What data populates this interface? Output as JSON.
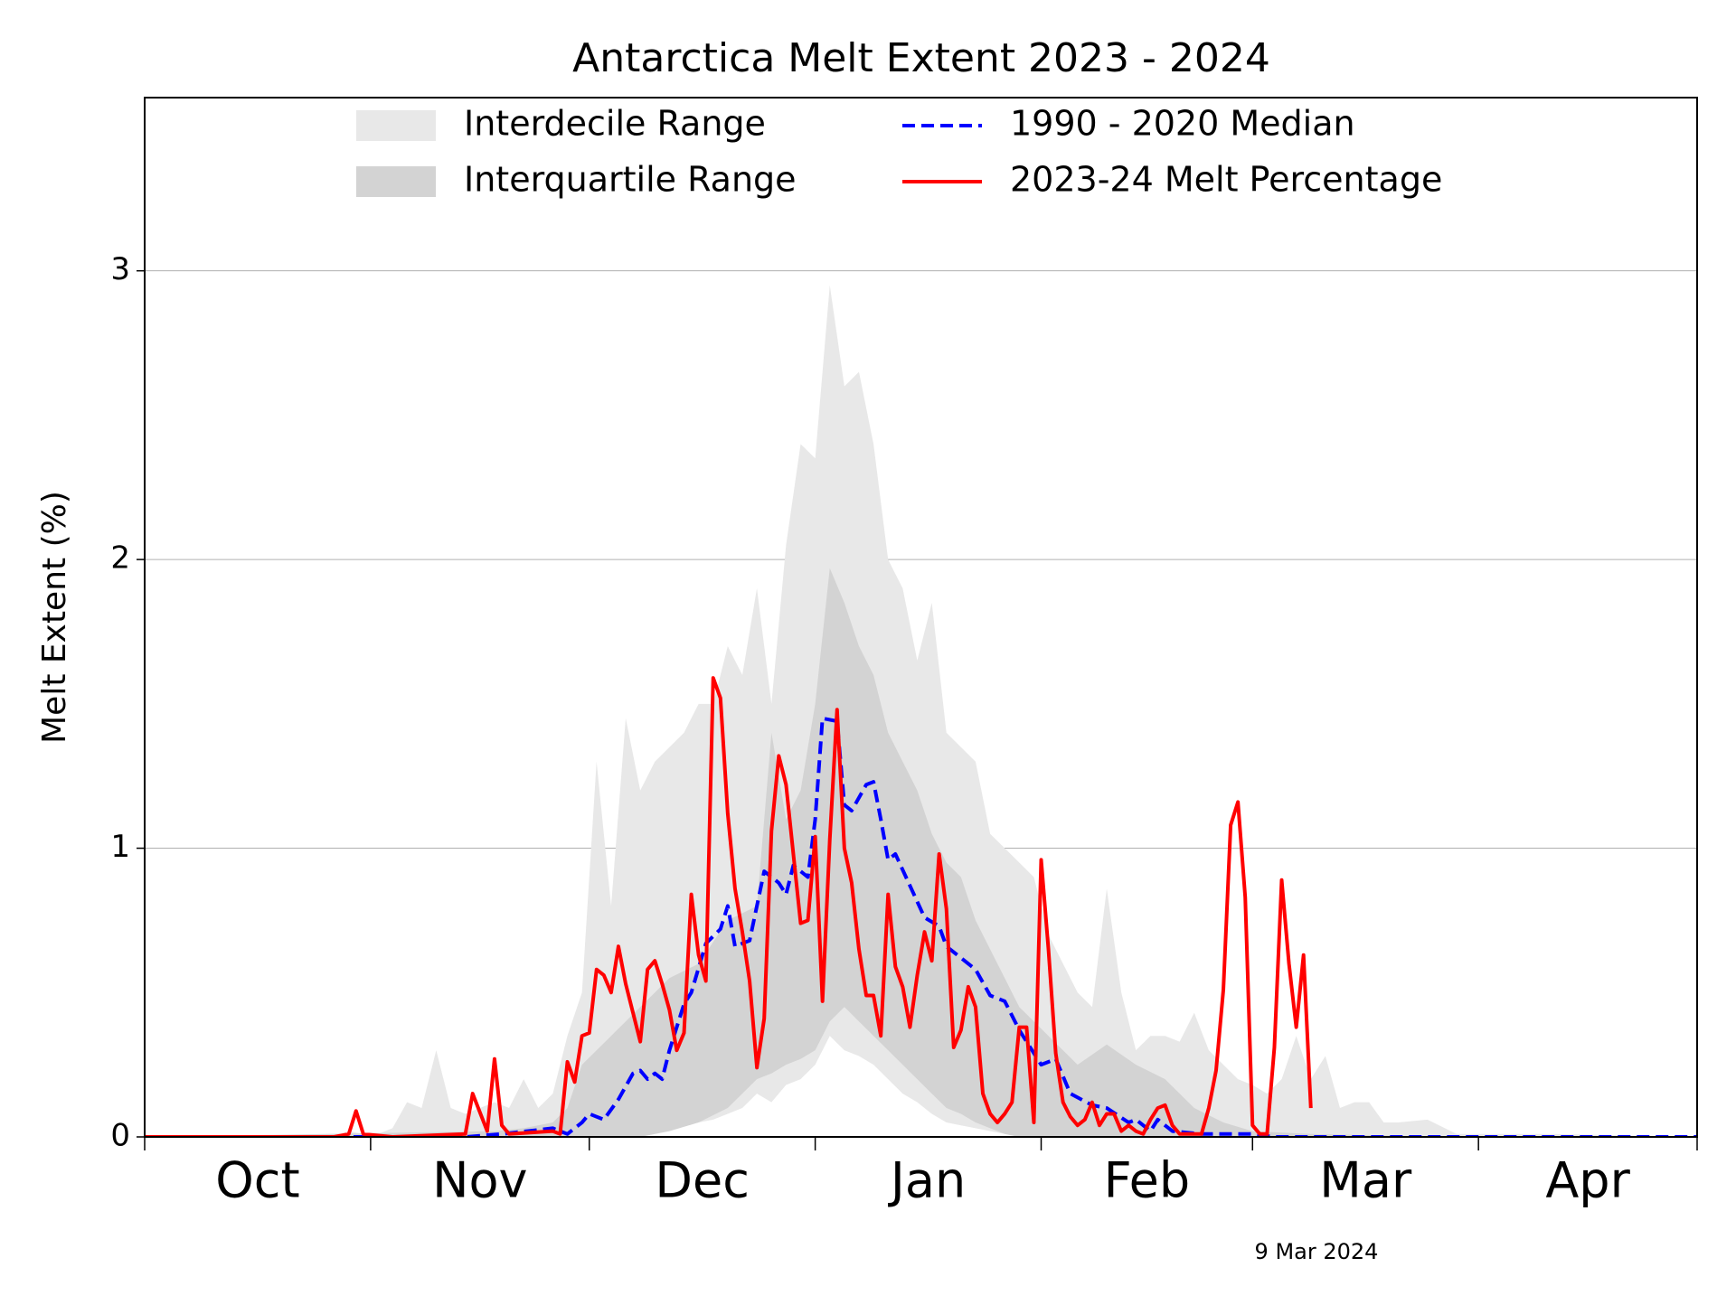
{
  "chart_data": {
    "type": "line",
    "title": "Antarctica Melt Extent 2023 - 2024",
    "ylabel": "Melt Extent (%)",
    "annotation": "9 Mar 2024",
    "xlim": [
      0,
      213
    ],
    "xticks": [
      0,
      31,
      61,
      92,
      123,
      152,
      183,
      213
    ],
    "month_labels": [
      {
        "value": 15.5,
        "label": "Oct"
      },
      {
        "value": 46,
        "label": "Nov"
      },
      {
        "value": 76.5,
        "label": "Dec"
      },
      {
        "value": 107.5,
        "label": "Jan"
      },
      {
        "value": 137.5,
        "label": "Feb"
      },
      {
        "value": 167.5,
        "label": "Mar"
      },
      {
        "value": 198,
        "label": "Apr"
      }
    ],
    "ylim": [
      0,
      3.6
    ],
    "yticks": [
      0,
      1,
      2,
      3
    ],
    "grid": true,
    "legend": "upper center",
    "series": [
      {
        "name": "Interdecile Range",
        "color": "#e8e8e8",
        "x": [
          0,
          26,
          28,
          30,
          32,
          34,
          36,
          38,
          40,
          42,
          44,
          46,
          48,
          50,
          52,
          54,
          56,
          58,
          60,
          62,
          64,
          66,
          68,
          70,
          72,
          74,
          76,
          78,
          80,
          82,
          84,
          86,
          88,
          90,
          92,
          94,
          96,
          98,
          100,
          102,
          104,
          106,
          108,
          110,
          112,
          114,
          116,
          118,
          120,
          122,
          124,
          126,
          128,
          130,
          132,
          134,
          136,
          138,
          140,
          142,
          144,
          146,
          148,
          150,
          152,
          154,
          156,
          158,
          160,
          162,
          164,
          166,
          168,
          170,
          172,
          176,
          180,
          193,
          213
        ],
        "high": [
          0,
          0,
          0.02,
          0.01,
          0.01,
          0.03,
          0.12,
          0.1,
          0.3,
          0.1,
          0.08,
          0.1,
          0.12,
          0.1,
          0.2,
          0.1,
          0.15,
          0.35,
          0.5,
          1.3,
          0.8,
          1.45,
          1.2,
          1.3,
          1.35,
          1.4,
          1.5,
          1.5,
          1.7,
          1.6,
          1.9,
          1.5,
          2.05,
          2.4,
          2.35,
          2.95,
          2.6,
          2.65,
          2.4,
          2.0,
          1.9,
          1.65,
          1.85,
          1.4,
          1.35,
          1.3,
          1.05,
          1.0,
          0.95,
          0.9,
          0.7,
          0.6,
          0.5,
          0.45,
          0.86,
          0.5,
          0.3,
          0.35,
          0.35,
          0.33,
          0.43,
          0.3,
          0.25,
          0.2,
          0.18,
          0.15,
          0.2,
          0.35,
          0.2,
          0.28,
          0.1,
          0.12,
          0.12,
          0.05,
          0.05,
          0.06,
          0.01,
          0.01,
          0
        ],
        "low": [
          0,
          0,
          0,
          0,
          0,
          0,
          0,
          0,
          0,
          0,
          0,
          0,
          0,
          0,
          0,
          0,
          0,
          0,
          0,
          0,
          0,
          0,
          0,
          0.02,
          0.03,
          0.04,
          0.05,
          0.06,
          0.08,
          0.1,
          0.15,
          0.12,
          0.18,
          0.2,
          0.25,
          0.35,
          0.3,
          0.28,
          0.25,
          0.2,
          0.15,
          0.12,
          0.08,
          0.05,
          0.04,
          0.03,
          0.02,
          0.01,
          0,
          0,
          0,
          0,
          0,
          0,
          0,
          0,
          0,
          0,
          0,
          0,
          0,
          0,
          0,
          0,
          0,
          0,
          0,
          0,
          0,
          0,
          0,
          0,
          0,
          0,
          0,
          0,
          0,
          0,
          0
        ]
      },
      {
        "name": "Interquartile Range",
        "color": "#d3d3d3",
        "x": [
          0,
          48,
          52,
          56,
          58,
          60,
          64,
          68,
          72,
          76,
          80,
          84,
          86,
          88,
          90,
          92,
          94,
          96,
          98,
          100,
          102,
          104,
          106,
          108,
          110,
          112,
          114,
          116,
          118,
          120,
          124,
          128,
          132,
          136,
          140,
          144,
          148,
          152,
          160,
          180,
          213
        ],
        "high": [
          0,
          0.02,
          0.03,
          0.05,
          0.1,
          0.25,
          0.35,
          0.45,
          0.55,
          0.6,
          0.75,
          0.8,
          1.4,
          1.1,
          1.2,
          1.5,
          1.97,
          1.85,
          1.7,
          1.6,
          1.4,
          1.3,
          1.2,
          1.05,
          0.95,
          0.9,
          0.75,
          0.65,
          0.55,
          0.45,
          0.35,
          0.25,
          0.32,
          0.25,
          0.2,
          0.1,
          0.05,
          0.02,
          0.01,
          0,
          0
        ],
        "low": [
          0,
          0,
          0,
          0,
          0,
          0,
          0,
          0,
          0.02,
          0.05,
          0.1,
          0.2,
          0.22,
          0.25,
          0.27,
          0.3,
          0.4,
          0.45,
          0.4,
          0.35,
          0.3,
          0.25,
          0.2,
          0.15,
          0.1,
          0.08,
          0.05,
          0.03,
          0.01,
          0,
          0,
          0,
          0,
          0,
          0,
          0,
          0,
          0,
          0,
          0,
          0
        ]
      },
      {
        "name": "1990 - 2020 Median",
        "color": "#0000ff",
        "linestyle": "dashed",
        "x": [
          0,
          44,
          49,
          56,
          58,
          60,
          61,
          63,
          65,
          67,
          68,
          69,
          70,
          71,
          72,
          74,
          75,
          77,
          79,
          80,
          81,
          83,
          85,
          87,
          88,
          89,
          91,
          92,
          93,
          95,
          96,
          97,
          99,
          100,
          101,
          102,
          103,
          105,
          107,
          109,
          110,
          112,
          114,
          116,
          118,
          120,
          123,
          125,
          127,
          130,
          132,
          135,
          136,
          138,
          139,
          141,
          145,
          152,
          155,
          213
        ],
        "values": [
          0,
          0,
          0.01,
          0.03,
          0.01,
          0.05,
          0.08,
          0.06,
          0.13,
          0.22,
          0.23,
          0.2,
          0.22,
          0.2,
          0.3,
          0.46,
          0.5,
          0.67,
          0.72,
          0.8,
          0.66,
          0.68,
          0.92,
          0.88,
          0.84,
          0.94,
          0.9,
          1.1,
          1.45,
          1.44,
          1.15,
          1.13,
          1.22,
          1.23,
          1.1,
          0.96,
          0.98,
          0.87,
          0.76,
          0.73,
          0.66,
          0.62,
          0.58,
          0.49,
          0.47,
          0.37,
          0.25,
          0.27,
          0.15,
          0.11,
          0.1,
          0.05,
          0.06,
          0.02,
          0.06,
          0.02,
          0.01,
          0.01,
          0,
          0
        ]
      },
      {
        "name": "2023-24 Melt Percentage",
        "color": "#ff0000",
        "linestyle": "solid",
        "x": [
          0,
          26,
          28,
          29,
          30,
          34,
          44,
          45,
          47,
          48,
          49,
          50,
          56,
          57,
          58,
          59,
          60,
          61,
          62,
          63,
          64,
          65,
          66,
          67,
          68,
          69,
          70,
          71,
          72,
          73,
          74,
          75,
          76,
          77,
          78,
          79,
          80,
          81,
          82,
          83,
          84,
          85,
          86,
          87,
          88,
          89,
          90,
          91,
          92,
          93,
          94,
          95,
          96,
          97,
          98,
          99,
          100,
          101,
          102,
          103,
          104,
          105,
          106,
          107,
          108,
          109,
          110,
          111,
          112,
          113,
          114,
          115,
          116,
          117,
          118,
          119,
          120,
          121,
          122,
          123,
          124,
          125,
          126,
          127,
          128,
          129,
          130,
          131,
          132,
          133,
          134,
          135,
          136,
          137,
          138,
          139,
          140,
          141,
          142,
          145,
          146,
          147,
          148,
          149,
          150,
          151,
          152,
          153,
          154,
          155,
          156,
          157,
          158,
          159,
          160
        ],
        "values": [
          0,
          0,
          0.01,
          0.09,
          0.01,
          0,
          0.01,
          0.15,
          0.02,
          0.27,
          0.04,
          0.01,
          0.02,
          0.01,
          0.26,
          0.19,
          0.35,
          0.36,
          0.58,
          0.56,
          0.5,
          0.66,
          0.53,
          0.43,
          0.33,
          0.58,
          0.61,
          0.53,
          0.44,
          0.3,
          0.36,
          0.84,
          0.63,
          0.54,
          1.59,
          1.52,
          1.12,
          0.86,
          0.71,
          0.54,
          0.24,
          0.41,
          1.06,
          1.32,
          1.22,
          0.98,
          0.74,
          0.75,
          1.04,
          0.47,
          1.03,
          1.48,
          1.0,
          0.88,
          0.65,
          0.49,
          0.49,
          0.35,
          0.84,
          0.59,
          0.52,
          0.38,
          0.56,
          0.71,
          0.61,
          0.98,
          0.79,
          0.31,
          0.37,
          0.52,
          0.45,
          0.15,
          0.08,
          0.05,
          0.08,
          0.12,
          0.38,
          0.38,
          0.05,
          0.96,
          0.65,
          0.29,
          0.12,
          0.07,
          0.04,
          0.06,
          0.12,
          0.04,
          0.08,
          0.08,
          0.02,
          0.04,
          0.02,
          0.01,
          0.06,
          0.1,
          0.11,
          0.04,
          0.01,
          0.01,
          0.1,
          0.23,
          0.51,
          1.08,
          1.16,
          0.83,
          0.04,
          0.01,
          0.01,
          0.31,
          0.89,
          0.6,
          0.38,
          0.63,
          0.1
        ]
      }
    ]
  }
}
